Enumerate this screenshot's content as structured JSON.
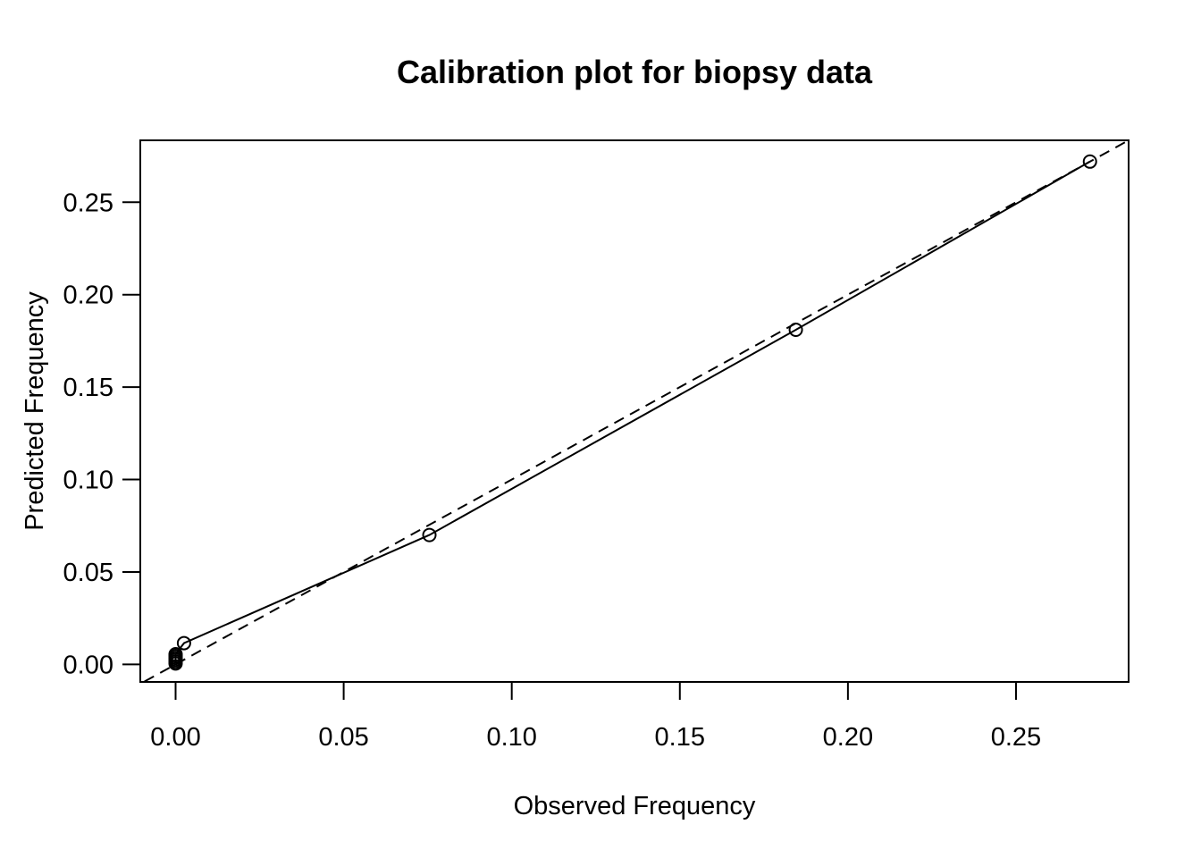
{
  "chart_data": {
    "type": "scatter",
    "title": "Calibration plot for biopsy data",
    "xlabel": "Observed Frequency",
    "ylabel": "Predicted Frequency",
    "xlim": [
      -0.0105,
      0.2835
    ],
    "ylim": [
      -0.0095,
      0.2835
    ],
    "x_ticks": [
      {
        "value": 0.0,
        "label": "0.00"
      },
      {
        "value": 0.05,
        "label": "0.05"
      },
      {
        "value": 0.1,
        "label": "0.10"
      },
      {
        "value": 0.15,
        "label": "0.15"
      },
      {
        "value": 0.2,
        "label": "0.20"
      },
      {
        "value": 0.25,
        "label": "0.25"
      }
    ],
    "y_ticks": [
      {
        "value": 0.0,
        "label": "0.00"
      },
      {
        "value": 0.05,
        "label": "0.05"
      },
      {
        "value": 0.1,
        "label": "0.10"
      },
      {
        "value": 0.15,
        "label": "0.15"
      },
      {
        "value": 0.2,
        "label": "0.20"
      },
      {
        "value": 0.25,
        "label": "0.25"
      }
    ],
    "grid": false,
    "legend": "none",
    "reference_line": {
      "style": "dashed",
      "slope": 1,
      "intercept": 0
    },
    "series": [
      {
        "marker": "open-circle",
        "line": "solid",
        "x": [
          0.0,
          0.0,
          0.0,
          0.0,
          0.0,
          0.0,
          0.0025,
          0.0755,
          0.1845,
          0.272
        ],
        "y": [
          0.0005,
          0.0015,
          0.0025,
          0.0035,
          0.0045,
          0.0055,
          0.0115,
          0.07,
          0.181,
          0.272
        ]
      }
    ]
  }
}
